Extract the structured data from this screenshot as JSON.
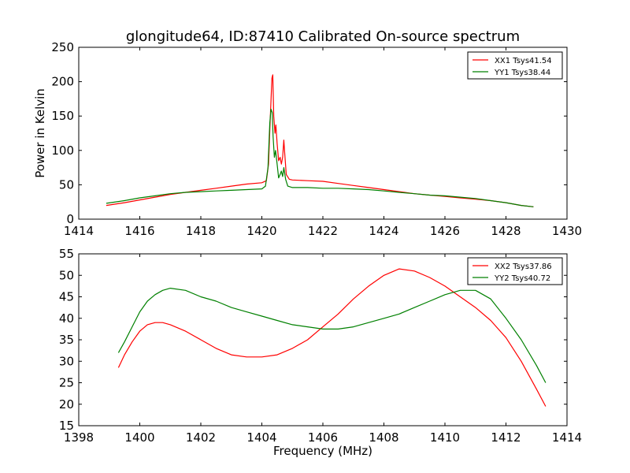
{
  "title": "glongitude64, ID:87410 Calibrated On-source spectrum",
  "colors": {
    "red": "#ff0000",
    "green": "#008000"
  },
  "chart_data": [
    {
      "type": "line",
      "xlabel": "",
      "ylabel": "Power in Kelvin",
      "xlim": [
        1414,
        1430
      ],
      "ylim": [
        0,
        250
      ],
      "xticks": [
        "1414",
        "1416",
        "1418",
        "1420",
        "1422",
        "1424",
        "1426",
        "1428",
        "1430"
      ],
      "yticks": [
        "0",
        "50",
        "100",
        "150",
        "200",
        "250"
      ],
      "legend_position": "top-right",
      "series": [
        {
          "name": "XX1 Tsys41.54",
          "color": "#ff0000",
          "points": [
            [
              1414.9,
              20
            ],
            [
              1415.5,
              24
            ],
            [
              1416,
              28
            ],
            [
              1416.5,
              32
            ],
            [
              1417,
              36
            ],
            [
              1417.5,
              39
            ],
            [
              1418,
              42
            ],
            [
              1418.5,
              45
            ],
            [
              1419,
              48
            ],
            [
              1419.5,
              51
            ],
            [
              1420,
              53
            ],
            [
              1420.15,
              56
            ],
            [
              1420.22,
              80
            ],
            [
              1420.28,
              150
            ],
            [
              1420.33,
              205
            ],
            [
              1420.36,
              210
            ],
            [
              1420.39,
              150
            ],
            [
              1420.43,
              125
            ],
            [
              1420.46,
              137
            ],
            [
              1420.5,
              110
            ],
            [
              1420.55,
              85
            ],
            [
              1420.6,
              90
            ],
            [
              1420.64,
              80
            ],
            [
              1420.68,
              90
            ],
            [
              1420.72,
              115
            ],
            [
              1420.75,
              95
            ],
            [
              1420.8,
              65
            ],
            [
              1420.9,
              58
            ],
            [
              1421,
              57
            ],
            [
              1421.5,
              56
            ],
            [
              1422,
              55
            ],
            [
              1422.5,
              52
            ],
            [
              1423,
              49
            ],
            [
              1423.5,
              46
            ],
            [
              1424,
              43
            ],
            [
              1424.5,
              40
            ],
            [
              1425,
              37
            ],
            [
              1425.5,
              35
            ],
            [
              1426,
              33
            ],
            [
              1426.5,
              31
            ],
            [
              1427,
              29
            ],
            [
              1427.5,
              27
            ],
            [
              1428,
              24
            ],
            [
              1428.5,
              20
            ],
            [
              1428.9,
              18
            ]
          ]
        },
        {
          "name": "YY1 Tsys38.44",
          "color": "#008000",
          "points": [
            [
              1414.9,
              23
            ],
            [
              1415.5,
              27
            ],
            [
              1416,
              31
            ],
            [
              1416.5,
              34
            ],
            [
              1417,
              37
            ],
            [
              1417.5,
              39
            ],
            [
              1418,
              40
            ],
            [
              1418.5,
              41
            ],
            [
              1419,
              42
            ],
            [
              1419.5,
              43
            ],
            [
              1420,
              44
            ],
            [
              1420.12,
              48
            ],
            [
              1420.2,
              75
            ],
            [
              1420.26,
              140
            ],
            [
              1420.3,
              160
            ],
            [
              1420.34,
              155
            ],
            [
              1420.37,
              120
            ],
            [
              1420.41,
              90
            ],
            [
              1420.45,
              100
            ],
            [
              1420.5,
              80
            ],
            [
              1420.55,
              60
            ],
            [
              1420.6,
              65
            ],
            [
              1420.64,
              70
            ],
            [
              1420.68,
              62
            ],
            [
              1420.72,
              75
            ],
            [
              1420.78,
              58
            ],
            [
              1420.85,
              48
            ],
            [
              1421,
              46
            ],
            [
              1421.5,
              46
            ],
            [
              1422,
              45
            ],
            [
              1422.5,
              45
            ],
            [
              1423,
              44
            ],
            [
              1423.5,
              43
            ],
            [
              1424,
              41
            ],
            [
              1424.5,
              39
            ],
            [
              1425,
              37
            ],
            [
              1425.5,
              35
            ],
            [
              1426,
              34
            ],
            [
              1426.5,
              32
            ],
            [
              1427,
              30
            ],
            [
              1427.5,
              27
            ],
            [
              1428,
              24
            ],
            [
              1428.5,
              20
            ],
            [
              1428.9,
              18
            ]
          ]
        }
      ]
    },
    {
      "type": "line",
      "xlabel": "Frequency (MHz)",
      "ylabel": "",
      "xlim": [
        1398,
        1414
      ],
      "ylim": [
        15,
        55
      ],
      "xticks": [
        "1398",
        "1400",
        "1402",
        "1404",
        "1406",
        "1408",
        "1410",
        "1412",
        "1414"
      ],
      "yticks": [
        "15",
        "20",
        "25",
        "30",
        "35",
        "40",
        "45",
        "50",
        "55"
      ],
      "legend_position": "top-right",
      "series": [
        {
          "name": "XX2 Tsys37.86",
          "color": "#ff0000",
          "points": [
            [
              1399.3,
              28.5
            ],
            [
              1399.5,
              31.5
            ],
            [
              1399.75,
              34.5
            ],
            [
              1400,
              37
            ],
            [
              1400.25,
              38.5
            ],
            [
              1400.5,
              39
            ],
            [
              1400.75,
              39
            ],
            [
              1401,
              38.5
            ],
            [
              1401.5,
              37
            ],
            [
              1402,
              35
            ],
            [
              1402.5,
              33
            ],
            [
              1403,
              31.5
            ],
            [
              1403.5,
              31
            ],
            [
              1404,
              31
            ],
            [
              1404.5,
              31.5
            ],
            [
              1405,
              33
            ],
            [
              1405.5,
              35
            ],
            [
              1406,
              38
            ],
            [
              1406.5,
              41
            ],
            [
              1407,
              44.5
            ],
            [
              1407.5,
              47.5
            ],
            [
              1408,
              50
            ],
            [
              1408.5,
              51.5
            ],
            [
              1409,
              51
            ],
            [
              1409.5,
              49.5
            ],
            [
              1410,
              47.5
            ],
            [
              1410.5,
              45
            ],
            [
              1411,
              42.5
            ],
            [
              1411.5,
              39.5
            ],
            [
              1412,
              35.5
            ],
            [
              1412.5,
              30
            ],
            [
              1413,
              23.5
            ],
            [
              1413.3,
              19.5
            ]
          ]
        },
        {
          "name": "YY2 Tsys40.72",
          "color": "#008000",
          "points": [
            [
              1399.3,
              32
            ],
            [
              1399.5,
              34.5
            ],
            [
              1399.75,
              38
            ],
            [
              1400,
              41.5
            ],
            [
              1400.25,
              44
            ],
            [
              1400.5,
              45.5
            ],
            [
              1400.75,
              46.5
            ],
            [
              1401,
              47
            ],
            [
              1401.5,
              46.5
            ],
            [
              1402,
              45
            ],
            [
              1402.5,
              44
            ],
            [
              1403,
              42.5
            ],
            [
              1403.5,
              41.5
            ],
            [
              1404,
              40.5
            ],
            [
              1404.5,
              39.5
            ],
            [
              1405,
              38.5
            ],
            [
              1405.5,
              38
            ],
            [
              1406,
              37.5
            ],
            [
              1406.5,
              37.5
            ],
            [
              1407,
              38
            ],
            [
              1407.5,
              39
            ],
            [
              1408,
              40
            ],
            [
              1408.5,
              41
            ],
            [
              1409,
              42.5
            ],
            [
              1409.5,
              44
            ],
            [
              1410,
              45.5
            ],
            [
              1410.5,
              46.5
            ],
            [
              1411,
              46.5
            ],
            [
              1411.5,
              44.5
            ],
            [
              1412,
              40
            ],
            [
              1412.5,
              35
            ],
            [
              1413,
              29
            ],
            [
              1413.3,
              25
            ]
          ]
        }
      ]
    }
  ]
}
